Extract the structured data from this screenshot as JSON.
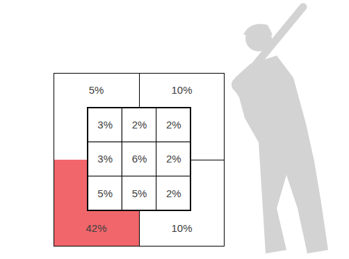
{
  "chart_data": {
    "type": "zone",
    "data_labels": true,
    "tick_labels": false,
    "inner": {
      "values": [
        [
          3,
          2,
          2
        ],
        [
          3,
          6,
          2
        ],
        [
          5,
          5,
          2
        ]
      ],
      "value_labels": [
        [
          "3%",
          "2%",
          "2%"
        ],
        [
          "3%",
          "6%",
          "2%"
        ],
        [
          "5%",
          "5%",
          "2%"
        ]
      ],
      "color": "#ffffff"
    },
    "outer": {
      "values": [
        5,
        10,
        42,
        10
      ],
      "value_labels": [
        "5%",
        "10%",
        "42%",
        "10%"
      ],
      "colors": [
        "#ffffff",
        "#ffffff",
        "#f0666b",
        "#ffffff"
      ]
    }
  }
}
